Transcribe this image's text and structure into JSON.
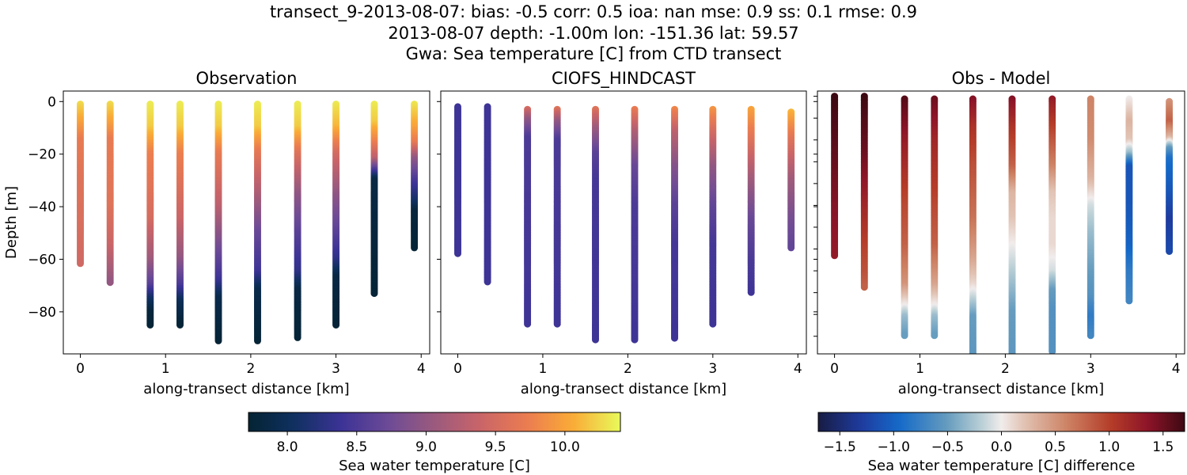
{
  "figure": {
    "title_lines": [
      "transect_9-2013-08-07: bias: -0.5  corr: 0.5  ioa: nan  mse: 0.9  ss: 0.1  rmse: 0.9",
      "2013-08-07 depth: -1.00m lon: -151.36 lat: 59.57",
      "Gwa: Sea temperature [C] from CTD transect"
    ]
  },
  "chart_data": [
    {
      "type": "scatter",
      "title": "Observation",
      "xlabel": "along-transect distance [km]",
      "ylabel": "Depth [m]",
      "xlim": [
        -0.2,
        4.1
      ],
      "ylim": [
        -96,
        4
      ],
      "xticks": [
        0,
        1,
        2,
        3,
        4
      ],
      "yticks": [
        0,
        -20,
        -40,
        -60,
        -80
      ],
      "colormap": "thermal",
      "clim": [
        7.72,
        10.4
      ],
      "casts": [
        {
          "x": 0.0,
          "top": -1,
          "bottom": -62,
          "profile": [
            [
              0,
              10.3
            ],
            [
              -8,
              10.0
            ],
            [
              -15,
              9.7
            ],
            [
              -30,
              9.6
            ],
            [
              -45,
              9.55
            ],
            [
              -62,
              9.45
            ]
          ]
        },
        {
          "x": 0.35,
          "top": -1,
          "bottom": -69,
          "profile": [
            [
              0,
              10.3
            ],
            [
              -8,
              10.0
            ],
            [
              -15,
              9.7
            ],
            [
              -40,
              9.6
            ],
            [
              -55,
              9.4
            ],
            [
              -62,
              9.2
            ],
            [
              -69,
              9.0
            ]
          ]
        },
        {
          "x": 0.82,
          "top": -1,
          "bottom": -85,
          "profile": [
            [
              0,
              10.35
            ],
            [
              -10,
              10.2
            ],
            [
              -20,
              9.75
            ],
            [
              -45,
              9.5
            ],
            [
              -60,
              9.1
            ],
            [
              -70,
              8.6
            ],
            [
              -75,
              8.1
            ],
            [
              -80,
              7.8
            ],
            [
              -85,
              7.75
            ]
          ]
        },
        {
          "x": 1.17,
          "top": -1,
          "bottom": -85,
          "profile": [
            [
              0,
              10.35
            ],
            [
              -10,
              10.2
            ],
            [
              -20,
              9.75
            ],
            [
              -45,
              9.4
            ],
            [
              -60,
              9.0
            ],
            [
              -70,
              8.5
            ],
            [
              -76,
              8.0
            ],
            [
              -85,
              7.75
            ]
          ]
        },
        {
          "x": 1.62,
          "top": -1,
          "bottom": -91,
          "profile": [
            [
              0,
              10.35
            ],
            [
              -10,
              10.2
            ],
            [
              -20,
              9.7
            ],
            [
              -40,
              9.3
            ],
            [
              -55,
              8.8
            ],
            [
              -68,
              8.4
            ],
            [
              -75,
              7.9
            ],
            [
              -91,
              7.75
            ]
          ]
        },
        {
          "x": 2.08,
          "top": -1,
          "bottom": -91,
          "profile": [
            [
              0,
              10.35
            ],
            [
              -10,
              10.2
            ],
            [
              -20,
              9.65
            ],
            [
              -35,
              9.2
            ],
            [
              -50,
              8.7
            ],
            [
              -65,
              8.4
            ],
            [
              -72,
              7.9
            ],
            [
              -91,
              7.75
            ]
          ]
        },
        {
          "x": 2.55,
          "top": -1,
          "bottom": -90,
          "profile": [
            [
              0,
              10.35
            ],
            [
              -10,
              10.2
            ],
            [
              -20,
              9.6
            ],
            [
              -35,
              9.0
            ],
            [
              -50,
              8.6
            ],
            [
              -65,
              8.3
            ],
            [
              -72,
              7.85
            ],
            [
              -90,
              7.75
            ]
          ]
        },
        {
          "x": 3.0,
          "top": -1,
          "bottom": -85,
          "profile": [
            [
              0,
              10.35
            ],
            [
              -10,
              10.1
            ],
            [
              -20,
              9.5
            ],
            [
              -35,
              9.0
            ],
            [
              -50,
              8.6
            ],
            [
              -60,
              8.3
            ],
            [
              -67,
              7.85
            ],
            [
              -85,
              7.75
            ]
          ]
        },
        {
          "x": 3.45,
          "top": -1,
          "bottom": -73,
          "profile": [
            [
              0,
              10.35
            ],
            [
              -8,
              10.2
            ],
            [
              -15,
              9.8
            ],
            [
              -22,
              9.3
            ],
            [
              -27,
              8.4
            ],
            [
              -30,
              7.85
            ],
            [
              -73,
              7.75
            ]
          ]
        },
        {
          "x": 3.92,
          "top": -1,
          "bottom": -56,
          "profile": [
            [
              0,
              10.35
            ],
            [
              -10,
              10.0
            ],
            [
              -16,
              9.7
            ],
            [
              -22,
              9.0
            ],
            [
              -30,
              8.5
            ],
            [
              -38,
              8.1
            ],
            [
              -42,
              7.8
            ],
            [
              -56,
              7.75
            ]
          ]
        }
      ]
    },
    {
      "type": "scatter",
      "title": "CIOFS_HINDCAST",
      "xlabel": "along-transect distance [km]",
      "ylabel": "",
      "xlim": [
        -0.2,
        4.1
      ],
      "ylim": [
        -96,
        4
      ],
      "xticks": [
        0,
        1,
        2,
        3,
        4
      ],
      "colormap": "thermal",
      "clim": [
        7.72,
        10.4
      ],
      "casts": [
        {
          "x": 0.0,
          "top": -2,
          "bottom": -58,
          "profile": [
            [
              -2,
              8.4
            ],
            [
              -58,
              8.4
            ]
          ]
        },
        {
          "x": 0.35,
          "top": -2,
          "bottom": -69,
          "profile": [
            [
              -2,
              8.4
            ],
            [
              -69,
              8.4
            ]
          ]
        },
        {
          "x": 0.82,
          "top": -3,
          "bottom": -85,
          "profile": [
            [
              -3,
              9.5
            ],
            [
              -7,
              9.0
            ],
            [
              -14,
              8.5
            ],
            [
              -85,
              8.4
            ]
          ]
        },
        {
          "x": 1.17,
          "top": -3,
          "bottom": -85,
          "profile": [
            [
              -3,
              9.6
            ],
            [
              -8,
              9.0
            ],
            [
              -15,
              8.5
            ],
            [
              -85,
              8.4
            ]
          ]
        },
        {
          "x": 1.62,
          "top": -3,
          "bottom": -91,
          "profile": [
            [
              -3,
              9.6
            ],
            [
              -10,
              9.1
            ],
            [
              -20,
              8.6
            ],
            [
              -30,
              8.45
            ],
            [
              -91,
              8.4
            ]
          ]
        },
        {
          "x": 2.08,
          "top": -3,
          "bottom": -91,
          "profile": [
            [
              -3,
              9.7
            ],
            [
              -12,
              9.2
            ],
            [
              -25,
              8.7
            ],
            [
              -40,
              8.5
            ],
            [
              -91,
              8.4
            ]
          ]
        },
        {
          "x": 2.55,
          "top": -3,
          "bottom": -90,
          "profile": [
            [
              -3,
              9.8
            ],
            [
              -12,
              9.3
            ],
            [
              -25,
              8.9
            ],
            [
              -40,
              8.6
            ],
            [
              -55,
              8.45
            ],
            [
              -90,
              8.4
            ]
          ]
        },
        {
          "x": 3.0,
          "top": -3,
          "bottom": -85,
          "profile": [
            [
              -3,
              9.9
            ],
            [
              -12,
              9.5
            ],
            [
              -25,
              9.0
            ],
            [
              -40,
              8.65
            ],
            [
              -55,
              8.45
            ],
            [
              -85,
              8.4
            ]
          ]
        },
        {
          "x": 3.45,
          "top": -3,
          "bottom": -73,
          "profile": [
            [
              -3,
              10.0
            ],
            [
              -15,
              9.6
            ],
            [
              -30,
              9.1
            ],
            [
              -45,
              8.7
            ],
            [
              -60,
              8.5
            ],
            [
              -73,
              8.4
            ]
          ]
        },
        {
          "x": 3.92,
          "top": -4,
          "bottom": -56,
          "profile": [
            [
              -4,
              10.1
            ],
            [
              -15,
              9.6
            ],
            [
              -30,
              9.1
            ],
            [
              -45,
              8.8
            ],
            [
              -56,
              8.65
            ]
          ]
        }
      ]
    },
    {
      "type": "scatter",
      "title": "Obs - Model",
      "xlabel": "along-transect distance [km]",
      "ylabel": "",
      "xlim": [
        -0.2,
        4.1
      ],
      "ylim": [
        -96,
        4
      ],
      "xticks": [
        0,
        1,
        2,
        3,
        4
      ],
      "colormap": "balance",
      "clim": [
        -1.7,
        1.7
      ],
      "casts": [
        {
          "x": 0.0,
          "top": 2,
          "bottom": -59,
          "profile": [
            [
              2,
              1.7
            ],
            [
              -20,
              1.55
            ],
            [
              -40,
              1.4
            ],
            [
              -59,
              1.3
            ]
          ]
        },
        {
          "x": 0.35,
          "top": 2,
          "bottom": -71,
          "profile": [
            [
              2,
              1.7
            ],
            [
              -20,
              1.5
            ],
            [
              -40,
              1.2
            ],
            [
              -55,
              1.0
            ],
            [
              -65,
              0.9
            ],
            [
              -71,
              0.8
            ]
          ]
        },
        {
          "x": 0.82,
          "top": 1,
          "bottom": -89,
          "profile": [
            [
              1,
              1.6
            ],
            [
              -15,
              1.3
            ],
            [
              -35,
              1.0
            ],
            [
              -55,
              0.8
            ],
            [
              -70,
              0.5
            ],
            [
              -78,
              0.0
            ],
            [
              -82,
              -0.3
            ],
            [
              -89,
              -0.5
            ]
          ]
        },
        {
          "x": 1.17,
          "top": 1,
          "bottom": -89,
          "profile": [
            [
              1,
              1.5
            ],
            [
              -15,
              1.2
            ],
            [
              -35,
              1.0
            ],
            [
              -55,
              0.8
            ],
            [
              -70,
              0.4
            ],
            [
              -78,
              0.0
            ],
            [
              -82,
              -0.3
            ],
            [
              -89,
              -0.5
            ]
          ]
        },
        {
          "x": 1.62,
          "top": 1,
          "bottom": -96,
          "profile": [
            [
              1,
              1.4
            ],
            [
              -10,
              1.1
            ],
            [
              -25,
              0.9
            ],
            [
              -45,
              0.7
            ],
            [
              -60,
              0.4
            ],
            [
              -70,
              0.1
            ],
            [
              -76,
              -0.2
            ],
            [
              -82,
              -0.5
            ],
            [
              -96,
              -0.55
            ]
          ]
        },
        {
          "x": 2.08,
          "top": 1,
          "bottom": -96,
          "profile": [
            [
              1,
              1.4
            ],
            [
              -10,
              1.1
            ],
            [
              -25,
              0.8
            ],
            [
              -35,
              0.3
            ],
            [
              -45,
              0.2
            ],
            [
              -55,
              0.0
            ],
            [
              -70,
              -0.3
            ],
            [
              -80,
              -0.5
            ],
            [
              -96,
              -0.55
            ]
          ]
        },
        {
          "x": 2.55,
          "top": 1,
          "bottom": -95,
          "profile": [
            [
              1,
              1.3
            ],
            [
              -10,
              1.0
            ],
            [
              -25,
              0.6
            ],
            [
              -35,
              0.2
            ],
            [
              -45,
              0.1
            ],
            [
              -55,
              0.1
            ],
            [
              -65,
              -0.1
            ],
            [
              -72,
              -0.5
            ],
            [
              -80,
              -0.6
            ],
            [
              -95,
              -0.6
            ]
          ]
        },
        {
          "x": 3.0,
          "top": 1,
          "bottom": -89,
          "profile": [
            [
              1,
              0.6
            ],
            [
              -15,
              0.55
            ],
            [
              -30,
              0.3
            ],
            [
              -40,
              -0.1
            ],
            [
              -50,
              -0.3
            ],
            [
              -65,
              -0.5
            ],
            [
              -75,
              -0.6
            ],
            [
              -82,
              -0.8
            ],
            [
              -89,
              -0.7
            ]
          ]
        },
        {
          "x": 3.45,
          "top": 1,
          "bottom": -76,
          "profile": [
            [
              1,
              0.0
            ],
            [
              -8,
              0.3
            ],
            [
              -15,
              0.2
            ],
            [
              -20,
              -0.3
            ],
            [
              -25,
              -1.1
            ],
            [
              -40,
              -1.1
            ],
            [
              -55,
              -1.0
            ],
            [
              -65,
              -0.8
            ],
            [
              -76,
              -0.7
            ]
          ]
        },
        {
          "x": 3.92,
          "top": 0,
          "bottom": -57,
          "profile": [
            [
              0,
              0.5
            ],
            [
              -8,
              0.8
            ],
            [
              -14,
              0.3
            ],
            [
              -18,
              -0.5
            ],
            [
              -22,
              -0.9
            ],
            [
              -35,
              -1.1
            ],
            [
              -45,
              -1.3
            ],
            [
              -57,
              -1.2
            ]
          ]
        }
      ]
    }
  ],
  "colorbars": [
    {
      "label": "Sea water temperature [C]",
      "colormap": "thermal",
      "range": [
        7.72,
        10.4
      ],
      "ticks": [
        8.0,
        8.5,
        9.0,
        9.5,
        10.0
      ],
      "tick_labels": [
        "8.0",
        "8.5",
        "9.0",
        "9.5",
        "10.0"
      ]
    },
    {
      "label": "Sea water temperature [C] difference",
      "colormap": "balance",
      "range": [
        -1.7,
        1.7
      ],
      "ticks": [
        -1.5,
        -1.0,
        -0.5,
        0.0,
        0.5,
        1.0,
        1.5
      ],
      "tick_labels": [
        "−1.5",
        "−1.0",
        "−0.5",
        "0.0",
        "0.5",
        "1.0",
        "1.5"
      ]
    }
  ]
}
